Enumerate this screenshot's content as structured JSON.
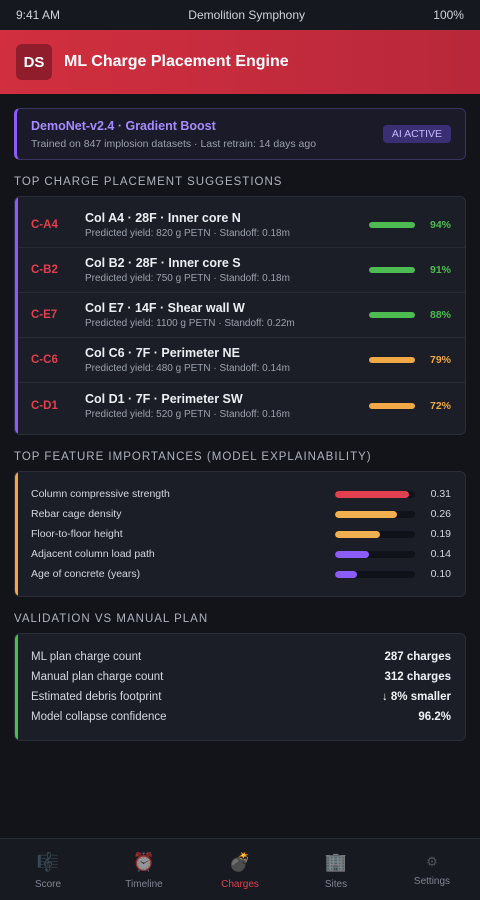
{
  "status": {
    "time": "9:41 AM",
    "app": "Demolition Symphony",
    "battery": "100%"
  },
  "header": {
    "badge": "DS",
    "title": "ML Charge Placement Engine",
    "color": "#d12f3f"
  },
  "model": {
    "name": "DemoNet-v2.4 · Gradient Boost",
    "subtitle": "Trained on 847 implosion datasets · Last retrain: 14 days ago",
    "badge": "AI ACTIVE"
  },
  "suggestions": {
    "title": "TOP CHARGE PLACEMENT SUGGESTIONS",
    "accent": "#8b5cf6",
    "items": [
      {
        "id": "C-A4",
        "title": "Col A4 · 28F · Inner core N",
        "detail": "Predicted yield: 820 g PETN · Standoff: 0.18m",
        "confidence": "94%",
        "color": "#4cbb52"
      },
      {
        "id": "C-B2",
        "title": "Col B2 · 28F · Inner core S",
        "detail": "Predicted yield: 750 g PETN · Standoff: 0.18m",
        "confidence": "91%",
        "color": "#4cbb52"
      },
      {
        "id": "C-E7",
        "title": "Col E7 · 14F · Shear wall W",
        "detail": "Predicted yield: 1100 g PETN · Standoff: 0.22m",
        "confidence": "88%",
        "color": "#4cbb52"
      },
      {
        "id": "C-C6",
        "title": "Col C6 · 7F · Perimeter NE",
        "detail": "Predicted yield: 480 g PETN · Standoff: 0.14m",
        "confidence": "79%",
        "color": "#f0a847"
      },
      {
        "id": "C-D1",
        "title": "Col D1 · 7F · Perimeter SW",
        "detail": "Predicted yield: 520 g PETN · Standoff: 0.16m",
        "confidence": "72%",
        "color": "#f0a847"
      }
    ]
  },
  "features": {
    "title": "TOP FEATURE IMPORTANCES (MODEL EXPLAINABILITY)",
    "accent": "#f0a847",
    "items": [
      {
        "label": "Column compressive strength",
        "value": "0.31",
        "color": "#e0404f",
        "fraction": 0.93
      },
      {
        "label": "Rebar cage density",
        "value": "0.26",
        "color": "#f0b04f",
        "fraction": 0.77
      },
      {
        "label": "Floor-to-floor height",
        "value": "0.19",
        "color": "#f0b04f",
        "fraction": 0.56
      },
      {
        "label": "Adjacent column load path",
        "value": "0.14",
        "color": "#8b5cf6",
        "fraction": 0.42
      },
      {
        "label": "Age of concrete (years)",
        "value": "0.10",
        "color": "#8b5cf6",
        "fraction": 0.28
      }
    ]
  },
  "validation": {
    "title": "VALIDATION VS MANUAL PLAN",
    "accent": "#4cbb52",
    "rows": [
      {
        "label": "ML plan charge count",
        "value": "287 charges"
      },
      {
        "label": "Manual plan charge count",
        "value": "312 charges"
      },
      {
        "label": "Estimated debris footprint",
        "value": "↓ 8% smaller"
      },
      {
        "label": "Model collapse confidence",
        "value": "96.2%"
      }
    ]
  },
  "nav": [
    {
      "label": "Score",
      "icon": "🎼",
      "icon_name": "score-icon"
    },
    {
      "label": "Timeline",
      "icon": "⏰",
      "icon_name": "timeline-icon"
    },
    {
      "label": "Charges",
      "icon": "💣",
      "icon_name": "charges-icon",
      "active": true
    },
    {
      "label": "Sites",
      "icon": "🏢",
      "icon_name": "sites-icon"
    },
    {
      "label": "Settings",
      "icon": "⚙",
      "icon_name": "settings-icon",
      "small": true
    }
  ]
}
